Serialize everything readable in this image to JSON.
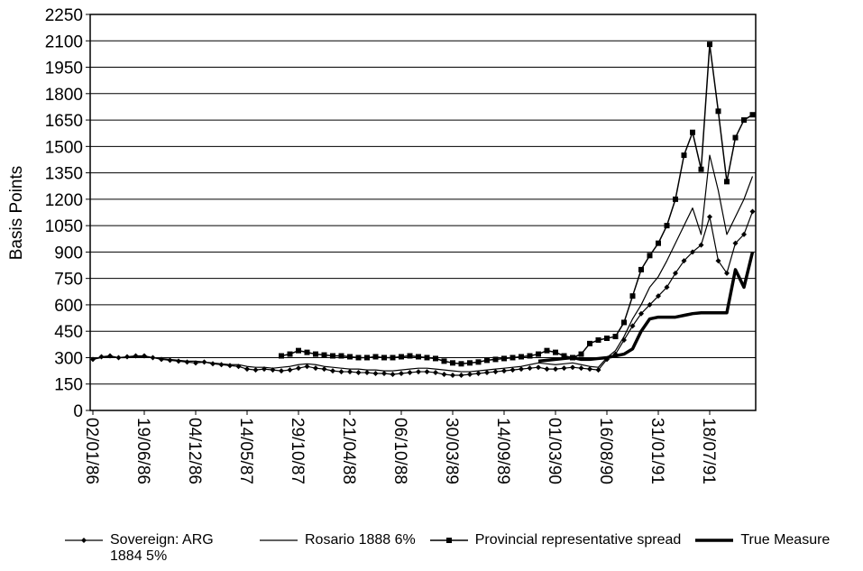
{
  "chart_data": {
    "type": "line",
    "y_label": "Basis Points",
    "categories": [
      "02/01/86",
      null,
      null,
      null,
      null,
      null,
      "19/06/86",
      null,
      null,
      null,
      null,
      null,
      "04/12/86",
      null,
      null,
      null,
      null,
      null,
      "14/05/87",
      null,
      null,
      null,
      null,
      null,
      "29/10/87",
      null,
      null,
      null,
      null,
      null,
      "21/04/88",
      null,
      null,
      null,
      null,
      null,
      "06/10/88",
      null,
      null,
      null,
      null,
      null,
      "30/03/89",
      null,
      null,
      null,
      null,
      null,
      "14/09/89",
      null,
      null,
      null,
      null,
      null,
      "01/03/90",
      null,
      null,
      null,
      null,
      null,
      "16/08/90",
      null,
      null,
      null,
      null,
      null,
      "31/01/91",
      null,
      null,
      null,
      null,
      null,
      "18/07/91",
      null,
      null,
      null,
      null,
      null
    ],
    "series": [
      {
        "name": "Sovereign: ARG 1884 5%",
        "color": "#000000",
        "marker": "diamond",
        "width": 1.2,
        "values": [
          290,
          305,
          310,
          300,
          305,
          310,
          310,
          300,
          290,
          285,
          280,
          275,
          270,
          275,
          265,
          260,
          255,
          250,
          235,
          230,
          235,
          230,
          225,
          230,
          240,
          250,
          240,
          235,
          225,
          220,
          220,
          215,
          215,
          210,
          210,
          205,
          210,
          215,
          220,
          220,
          215,
          205,
          200,
          200,
          205,
          210,
          215,
          220,
          225,
          230,
          235,
          240,
          245,
          235,
          235,
          240,
          245,
          240,
          235,
          230,
          290,
          320,
          400,
          480,
          550,
          600,
          650,
          700,
          780,
          850,
          900,
          940,
          1100,
          850,
          780,
          950,
          1000,
          1130
        ]
      },
      {
        "name": "Rosario 1888 6%",
        "color": "#000000",
        "marker": "none",
        "width": 1.2,
        "values": [
          290,
          300,
          305,
          300,
          300,
          305,
          305,
          300,
          295,
          290,
          285,
          280,
          280,
          275,
          270,
          265,
          260,
          260,
          250,
          245,
          245,
          240,
          245,
          250,
          260,
          265,
          260,
          250,
          245,
          240,
          235,
          235,
          230,
          230,
          225,
          225,
          230,
          235,
          240,
          240,
          235,
          230,
          225,
          220,
          220,
          225,
          230,
          235,
          240,
          245,
          250,
          260,
          270,
          265,
          260,
          265,
          270,
          260,
          250,
          245,
          300,
          340,
          420,
          520,
          600,
          700,
          760,
          850,
          950,
          1050,
          1150,
          1000,
          1450,
          1250,
          1000,
          1100,
          1200,
          1330
        ]
      },
      {
        "name": "Provincial representative spread",
        "color": "#000000",
        "marker": "square",
        "width": 1.5,
        "values": [
          null,
          null,
          null,
          null,
          null,
          null,
          null,
          null,
          null,
          null,
          null,
          null,
          null,
          null,
          null,
          null,
          null,
          null,
          null,
          null,
          null,
          null,
          310,
          320,
          340,
          330,
          320,
          315,
          310,
          310,
          305,
          300,
          300,
          305,
          300,
          300,
          305,
          310,
          305,
          300,
          295,
          280,
          270,
          265,
          270,
          275,
          285,
          290,
          295,
          300,
          305,
          310,
          320,
          340,
          330,
          310,
          300,
          320,
          380,
          400,
          410,
          420,
          500,
          650,
          800,
          880,
          950,
          1050,
          1200,
          1450,
          1580,
          1370,
          2080,
          1700,
          1300,
          1550,
          1650,
          1680
        ]
      },
      {
        "name": "True Measure",
        "color": "#000000",
        "marker": "none",
        "width": 3.5,
        "values": [
          null,
          null,
          null,
          null,
          null,
          null,
          null,
          null,
          null,
          null,
          null,
          null,
          null,
          null,
          null,
          null,
          null,
          null,
          null,
          null,
          null,
          null,
          null,
          null,
          null,
          null,
          null,
          null,
          null,
          null,
          null,
          null,
          null,
          null,
          null,
          null,
          null,
          null,
          null,
          null,
          null,
          null,
          null,
          null,
          null,
          null,
          null,
          null,
          null,
          null,
          null,
          null,
          280,
          285,
          290,
          295,
          300,
          290,
          290,
          295,
          300,
          310,
          320,
          350,
          450,
          520,
          530,
          530,
          530,
          540,
          550,
          555,
          555,
          555,
          555,
          800,
          700,
          900
        ]
      }
    ],
    "ylim": [
      0,
      2250
    ],
    "yticks": [
      0,
      150,
      300,
      450,
      600,
      750,
      900,
      1050,
      1200,
      1350,
      1500,
      1650,
      1800,
      1950,
      2100,
      2250
    ],
    "grid": true
  }
}
